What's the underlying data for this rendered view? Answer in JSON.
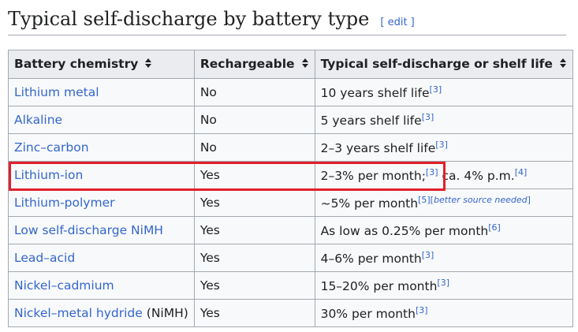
{
  "heading": {
    "title": "Typical self-discharge by battery type",
    "edit": "[ edit ]"
  },
  "table": {
    "headers": [
      "Battery chemistry",
      "Rechargeable",
      "Typical self-discharge or shelf life"
    ],
    "rows": [
      [
        [
          {
            "link": "Lithium metal"
          }
        ],
        [
          {
            "text": "No"
          }
        ],
        [
          {
            "text": "10 years shelf life"
          },
          {
            "sup": "[3]"
          }
        ]
      ],
      [
        [
          {
            "link": "Alkaline"
          }
        ],
        [
          {
            "text": "No"
          }
        ],
        [
          {
            "text": "5 years shelf life"
          },
          {
            "sup": "[3]"
          }
        ]
      ],
      [
        [
          {
            "link": "Zinc–carbon"
          }
        ],
        [
          {
            "text": "No"
          }
        ],
        [
          {
            "text": "2–3 years shelf life"
          },
          {
            "sup": "[3]"
          }
        ]
      ],
      [
        [
          {
            "link": "Lithium-ion"
          }
        ],
        [
          {
            "text": "Yes"
          }
        ],
        [
          {
            "text": "2–3% per month;"
          },
          {
            "sup": "[3]"
          },
          {
            "text": "ca. 4% p.m."
          },
          {
            "sup": "[4]"
          }
        ]
      ],
      [
        [
          {
            "link": "Lithium-polymer"
          }
        ],
        [
          {
            "text": "Yes"
          }
        ],
        [
          {
            "text": "~5% per month"
          },
          {
            "sup": "[5]"
          },
          {
            "sup": "["
          },
          {
            "note": "better source needed"
          },
          {
            "sup": "]"
          }
        ]
      ],
      [
        [
          {
            "link": "Low self-discharge NiMH"
          }
        ],
        [
          {
            "text": "Yes"
          }
        ],
        [
          {
            "text": "As low as 0.25% per month"
          },
          {
            "sup": "[6]"
          }
        ]
      ],
      [
        [
          {
            "link": "Lead–acid"
          }
        ],
        [
          {
            "text": "Yes"
          }
        ],
        [
          {
            "text": "4–6% per month"
          },
          {
            "sup": "[3]"
          }
        ]
      ],
      [
        [
          {
            "link": "Nickel–cadmium"
          }
        ],
        [
          {
            "text": "Yes"
          }
        ],
        [
          {
            "text": "15–20% per month"
          },
          {
            "sup": "[3]"
          }
        ]
      ],
      [
        [
          {
            "link": "Nickel–metal hydride"
          },
          {
            "text": "(NiMH)"
          }
        ],
        [
          {
            "text": "Yes"
          }
        ],
        [
          {
            "text": "30% per month"
          },
          {
            "sup": "[3]"
          }
        ]
      ]
    ]
  }
}
